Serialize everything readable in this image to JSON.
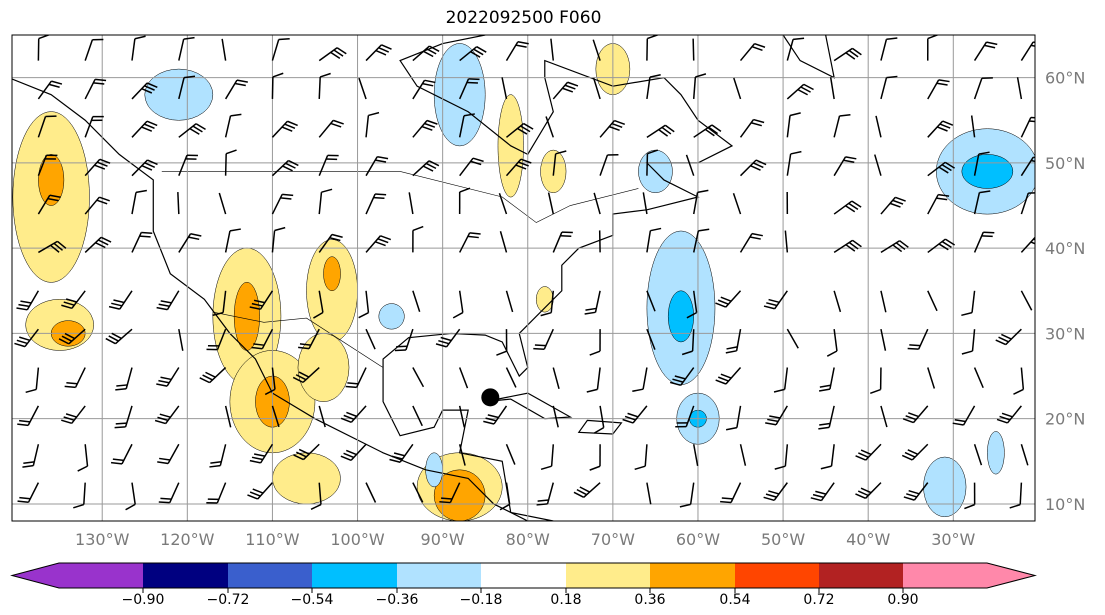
{
  "title": "2022092500 F060",
  "map": {
    "extent": {
      "lon_min": -140.6,
      "lon_max": -20.4,
      "lat_min": 8.0,
      "lat_max": 65.0
    },
    "lon_ticks": [
      -130,
      -120,
      -110,
      -100,
      -90,
      -80,
      -70,
      -60,
      -50,
      -40,
      -30
    ],
    "lon_labels": [
      "130°W",
      "120°W",
      "110°W",
      "100°W",
      "90°W",
      "80°W",
      "70°W",
      "60°W",
      "50°W",
      "40°W",
      "30°W"
    ],
    "lat_ticks": [
      10,
      20,
      30,
      40,
      50,
      60
    ],
    "lat_labels": [
      "10°N",
      "20°N",
      "30°N",
      "40°N",
      "50°N",
      "60°N"
    ],
    "storm_center": {
      "lon": -84.4,
      "lat": 22.5
    },
    "anomaly_regions": [
      {
        "lon": -136,
        "lat": 46,
        "rx": 4.5,
        "ry": 10,
        "value": 0.3
      },
      {
        "lon": -136,
        "lat": 48,
        "rx": 1.5,
        "ry": 3,
        "value": 0.45
      },
      {
        "lon": -135,
        "lat": 31,
        "rx": 4,
        "ry": 3,
        "value": 0.3
      },
      {
        "lon": -134,
        "lat": 30,
        "rx": 2,
        "ry": 1.5,
        "value": 0.45
      },
      {
        "lon": -113,
        "lat": 32,
        "rx": 4,
        "ry": 8,
        "value": 0.3
      },
      {
        "lon": -113,
        "lat": 32,
        "rx": 1.5,
        "ry": 4,
        "value": 0.45
      },
      {
        "lon": -110,
        "lat": 22,
        "rx": 5,
        "ry": 6,
        "value": 0.3
      },
      {
        "lon": -110,
        "lat": 22,
        "rx": 2,
        "ry": 3,
        "value": 0.45
      },
      {
        "lon": -103,
        "lat": 35,
        "rx": 3,
        "ry": 6,
        "value": 0.3
      },
      {
        "lon": -103,
        "lat": 37,
        "rx": 1,
        "ry": 2,
        "value": 0.45
      },
      {
        "lon": -104,
        "lat": 26,
        "rx": 3,
        "ry": 4,
        "value": 0.3
      },
      {
        "lon": -106,
        "lat": 13,
        "rx": 4,
        "ry": 3,
        "value": 0.3
      },
      {
        "lon": -88,
        "lat": 12,
        "rx": 5,
        "ry": 4,
        "value": 0.3
      },
      {
        "lon": -88,
        "lat": 11,
        "rx": 3,
        "ry": 3,
        "value": 0.45
      },
      {
        "lon": -82,
        "lat": 52,
        "rx": 1.5,
        "ry": 6,
        "value": 0.3
      },
      {
        "lon": -70,
        "lat": 61,
        "rx": 2,
        "ry": 3,
        "value": 0.3
      },
      {
        "lon": -77,
        "lat": 49,
        "rx": 1.5,
        "ry": 2.5,
        "value": 0.3
      },
      {
        "lon": -78,
        "lat": 34,
        "rx": 1,
        "ry": 1.5,
        "value": 0.3
      },
      {
        "lon": -88,
        "lat": 58,
        "rx": 3,
        "ry": 6,
        "value": -0.3
      },
      {
        "lon": -121,
        "lat": 58,
        "rx": 4,
        "ry": 3,
        "value": -0.3
      },
      {
        "lon": -62,
        "lat": 33,
        "rx": 4,
        "ry": 9,
        "value": -0.3
      },
      {
        "lon": -62,
        "lat": 32,
        "rx": 1.5,
        "ry": 3,
        "value": -0.45
      },
      {
        "lon": -26,
        "lat": 49,
        "rx": 6,
        "ry": 5,
        "value": -0.3
      },
      {
        "lon": -26,
        "lat": 49,
        "rx": 3,
        "ry": 2,
        "value": -0.45
      },
      {
        "lon": -65,
        "lat": 49,
        "rx": 2,
        "ry": 2.5,
        "value": -0.3
      },
      {
        "lon": -60,
        "lat": 20,
        "rx": 2.5,
        "ry": 3,
        "value": -0.3
      },
      {
        "lon": -60,
        "lat": 20,
        "rx": 1,
        "ry": 1,
        "value": -0.45
      },
      {
        "lon": -96,
        "lat": 32,
        "rx": 1.5,
        "ry": 1.5,
        "value": -0.3
      },
      {
        "lon": -31,
        "lat": 12,
        "rx": 2.5,
        "ry": 3.5,
        "value": -0.3
      },
      {
        "lon": -25,
        "lat": 16,
        "rx": 1,
        "ry": 2.5,
        "value": -0.3
      },
      {
        "lon": -91,
        "lat": 14,
        "rx": 1,
        "ry": 2,
        "value": -0.3
      }
    ]
  },
  "colorbar": {
    "boundaries": [
      -0.9,
      -0.72,
      -0.54,
      -0.36,
      -0.18,
      0.18,
      0.36,
      0.54,
      0.72,
      0.9
    ],
    "labels": [
      "−0.90",
      "−0.72",
      "−0.54",
      "−0.36",
      "−0.18",
      "0.18",
      "0.36",
      "0.54",
      "0.72",
      "0.90"
    ],
    "colors": [
      "#9933cc",
      "#000080",
      "#3a5fcd",
      "#00bfff",
      "#b0e2ff",
      "#ffffff",
      "#ffec8b",
      "#ffa500",
      "#ff4500",
      "#b22222",
      "#ff88aa"
    ]
  }
}
